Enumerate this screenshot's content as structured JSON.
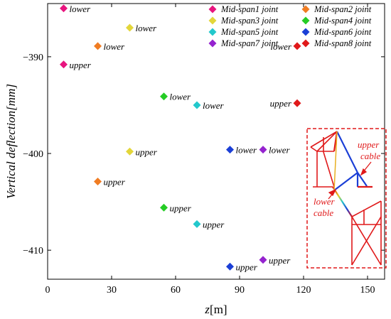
{
  "chart_data": {
    "type": "scatter",
    "xlabel": {
      "var": "z",
      "unit": "[m]"
    },
    "ylabel": "Vertical deflection[mm]",
    "xlim": [
      0,
      158
    ],
    "ylim": [
      -413,
      -384.5
    ],
    "xticks": [
      0,
      30,
      60,
      90,
      120,
      150
    ],
    "yticks": [
      -390,
      -400,
      -410
    ],
    "legend_position": "top-right",
    "grid": false,
    "marker": "diamond",
    "series": [
      {
        "name": "Mid-span1 joint",
        "color": "#e8157f",
        "points": [
          {
            "x": 7.5,
            "y": -385.0,
            "label": "lower"
          },
          {
            "x": 7.5,
            "y": -390.8,
            "label": "upper"
          }
        ]
      },
      {
        "name": "Mid-span2 joint",
        "color": "#f07c22",
        "points": [
          {
            "x": 23.5,
            "y": -388.9,
            "label": "lower"
          },
          {
            "x": 23.5,
            "y": -402.9,
            "label": "upper"
          }
        ]
      },
      {
        "name": "Mid-span3 joint",
        "color": "#e3d63a",
        "points": [
          {
            "x": 38.5,
            "y": -387.0,
            "label": "lower"
          },
          {
            "x": 38.5,
            "y": -399.8,
            "label": "upper"
          }
        ]
      },
      {
        "name": "Mid-span4 joint",
        "color": "#25cc25",
        "points": [
          {
            "x": 54.5,
            "y": -394.1,
            "label": "lower"
          },
          {
            "x": 54.5,
            "y": -405.6,
            "label": "upper"
          }
        ]
      },
      {
        "name": "Mid-span5 joint",
        "color": "#22c8cc",
        "points": [
          {
            "x": 70.0,
            "y": -395.0,
            "label": "lower"
          },
          {
            "x": 70.0,
            "y": -407.3,
            "label": "upper"
          }
        ]
      },
      {
        "name": "Mid-span6 joint",
        "color": "#1b3fd6",
        "points": [
          {
            "x": 85.5,
            "y": -399.6,
            "label": "lower"
          },
          {
            "x": 85.5,
            "y": -411.7,
            "label": "upper"
          }
        ]
      },
      {
        "name": "Mid-span7 joint",
        "color": "#9523cf",
        "points": [
          {
            "x": 101.0,
            "y": -399.6,
            "label": "lower"
          },
          {
            "x": 101.0,
            "y": -411.0,
            "label": "upper"
          }
        ]
      },
      {
        "name": "Mid-span8 joint",
        "color": "#e0191a",
        "points": [
          {
            "x": 117.0,
            "y": -388.9,
            "label": "lower"
          },
          {
            "x": 117.0,
            "y": -394.8,
            "label": "upper"
          }
        ]
      }
    ],
    "inset": {
      "labels": [
        "upper",
        "cable",
        "lower",
        "cable"
      ]
    }
  }
}
